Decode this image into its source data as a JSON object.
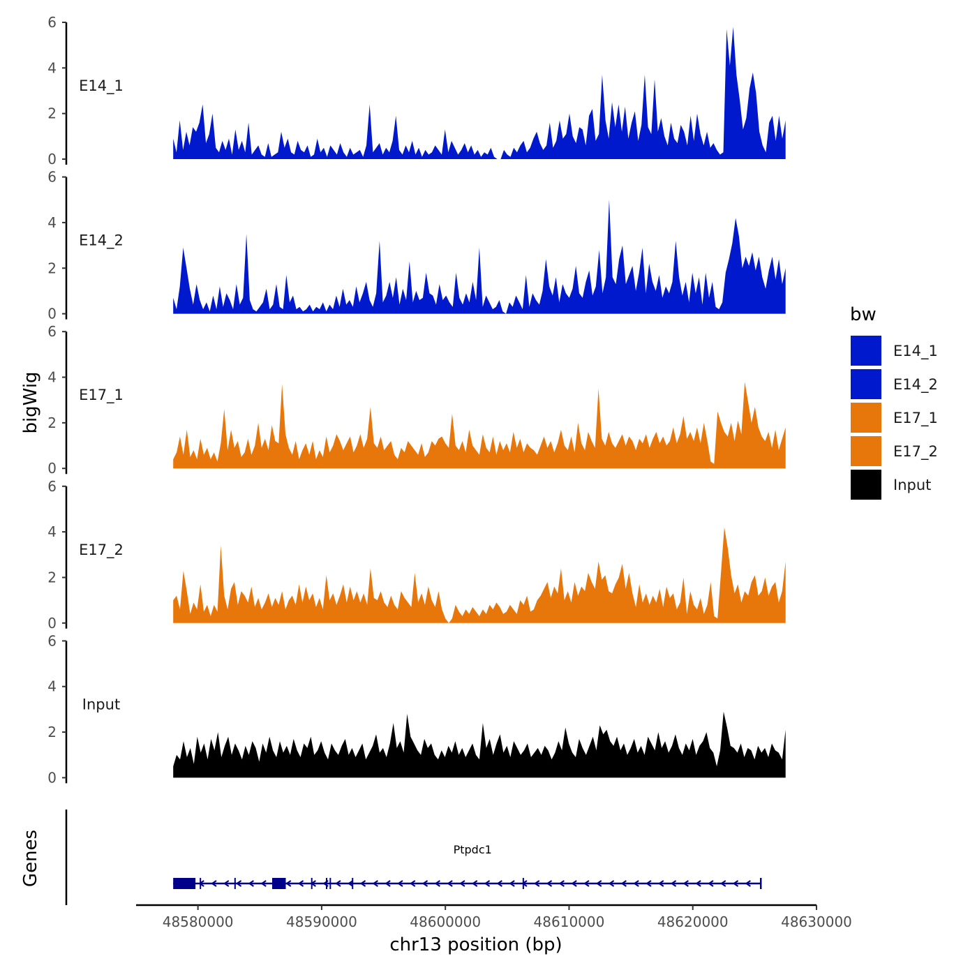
{
  "chart_data": {
    "type": "area",
    "title": "",
    "xlabel": "chr13 position (bp)",
    "ylabel": "bigWig",
    "genes_label": "Genes",
    "xlim": [
      48575000,
      48630000
    ],
    "data_x_range": [
      48578000,
      48627500
    ],
    "ylim": [
      0,
      6
    ],
    "yticks": [
      0,
      2,
      4,
      6
    ],
    "xticks": [
      48580000,
      48590000,
      48600000,
      48610000,
      48620000,
      48630000
    ],
    "xtick_labels": [
      "48580000",
      "48590000",
      "48600000",
      "48610000",
      "48620000",
      "48630000"
    ],
    "grid": false,
    "legend": {
      "title": "bw",
      "position": "right",
      "entries": [
        {
          "label": "E14_1",
          "color": "#0019CC"
        },
        {
          "label": "E14_2",
          "color": "#0019CC"
        },
        {
          "label": "E17_1",
          "color": "#E8770B"
        },
        {
          "label": "E17_2",
          "color": "#E8770B"
        },
        {
          "label": "Input",
          "color": "#000000"
        }
      ]
    },
    "series": [
      {
        "name": "E14_1",
        "color": "#0019CC",
        "values": [
          0.9,
          0.3,
          1.7,
          0.4,
          1.2,
          0.6,
          1.4,
          1.2,
          1.6,
          2.4,
          0.7,
          1.1,
          2.0,
          0.5,
          0.3,
          0.8,
          0.4,
          0.9,
          0.2,
          1.3,
          0.4,
          0.8,
          0.3,
          1.6,
          0.2,
          0.4,
          0.6,
          0.2,
          0.1,
          0.7,
          0.1,
          0.2,
          0.3,
          1.2,
          0.5,
          0.9,
          0.3,
          0.2,
          0.8,
          0.4,
          0.3,
          0.6,
          0.1,
          0.2,
          0.9,
          0.3,
          0.5,
          0.1,
          0.6,
          0.4,
          0.2,
          0.7,
          0.3,
          0.1,
          0.5,
          0.2,
          0.3,
          0.4,
          0.1,
          0.6,
          2.4,
          0.3,
          0.5,
          0.7,
          0.2,
          0.5,
          0.3,
          0.8,
          1.9,
          0.4,
          0.2,
          0.6,
          0.3,
          0.8,
          0.2,
          0.5,
          0.1,
          0.4,
          0.2,
          0.3,
          0.6,
          0.4,
          0.2,
          1.3,
          0.3,
          0.8,
          0.5,
          0.2,
          0.4,
          0.7,
          0.3,
          0.6,
          0.2,
          0.4,
          0.1,
          0.3,
          0.2,
          0.5,
          0.1,
          0.0,
          0.0,
          0.4,
          0.2,
          0.1,
          0.5,
          0.3,
          0.6,
          0.8,
          0.3,
          0.5,
          0.9,
          1.2,
          0.7,
          0.4,
          0.6,
          1.6,
          0.5,
          0.8,
          1.7,
          0.9,
          1.1,
          2.0,
          1.0,
          0.7,
          1.4,
          1.3,
          0.6,
          1.9,
          2.2,
          0.8,
          1.1,
          3.7,
          1.7,
          0.9,
          2.5,
          1.4,
          2.4,
          1.2,
          2.3,
          0.9,
          1.6,
          2.1,
          0.8,
          1.5,
          3.7,
          1.4,
          1.1,
          3.5,
          1.2,
          1.8,
          1.0,
          0.6,
          1.6,
          0.9,
          0.7,
          1.5,
          1.2,
          0.6,
          1.9,
          0.8,
          2.0,
          1.1,
          0.6,
          1.2,
          0.5,
          0.7,
          0.4,
          0.2,
          0.3,
          5.7,
          4.1,
          5.8,
          3.7,
          2.6,
          1.3,
          1.8,
          3.1,
          3.8,
          2.9,
          1.2,
          0.6,
          0.3,
          1.6,
          1.9,
          0.8,
          1.9,
          0.9,
          1.7
        ]
      },
      {
        "name": "E14_2",
        "color": "#0019CC",
        "values": [
          0.7,
          0.2,
          1.2,
          2.9,
          2.0,
          1.1,
          0.4,
          1.3,
          0.6,
          0.2,
          0.5,
          0.1,
          0.8,
          0.2,
          1.2,
          0.3,
          0.9,
          0.6,
          0.2,
          1.3,
          0.4,
          0.7,
          3.5,
          0.6,
          0.2,
          0.1,
          0.3,
          0.5,
          1.1,
          0.2,
          0.4,
          1.3,
          0.3,
          0.2,
          1.7,
          0.5,
          0.8,
          0.2,
          0.3,
          0.1,
          0.2,
          0.4,
          0.1,
          0.3,
          0.2,
          0.5,
          0.1,
          0.4,
          0.2,
          0.8,
          0.3,
          1.1,
          0.4,
          0.6,
          0.3,
          1.2,
          0.5,
          0.9,
          1.4,
          0.6,
          0.3,
          0.9,
          3.2,
          0.5,
          0.8,
          1.4,
          0.7,
          1.6,
          0.4,
          1.1,
          0.6,
          2.3,
          0.5,
          1.0,
          0.6,
          0.7,
          1.8,
          0.9,
          0.8,
          0.4,
          1.3,
          0.6,
          0.8,
          0.5,
          0.3,
          1.8,
          0.7,
          0.4,
          0.9,
          0.5,
          1.4,
          0.6,
          2.9,
          0.3,
          0.8,
          0.5,
          0.2,
          0.3,
          0.6,
          0.1,
          0.0,
          0.5,
          0.3,
          0.8,
          0.5,
          0.2,
          1.7,
          0.3,
          0.9,
          0.6,
          0.4,
          1.0,
          2.4,
          1.2,
          0.8,
          1.6,
          0.5,
          1.3,
          0.9,
          0.7,
          1.1,
          2.1,
          0.9,
          0.7,
          1.4,
          1.9,
          0.8,
          1.2,
          2.8,
          0.9,
          1.6,
          5.0,
          1.6,
          1.3,
          2.4,
          3.0,
          1.3,
          1.7,
          2.1,
          1.0,
          1.8,
          2.9,
          0.9,
          2.2,
          1.4,
          1.0,
          1.7,
          0.7,
          1.2,
          0.9,
          1.4,
          3.2,
          1.6,
          0.8,
          1.4,
          0.5,
          1.8,
          0.9,
          1.6,
          0.4,
          1.8,
          0.7,
          1.4,
          0.3,
          0.2,
          0.5,
          1.8,
          2.4,
          3.1,
          4.2,
          3.4,
          2.0,
          2.5,
          2.1,
          2.7,
          1.9,
          2.5,
          1.6,
          1.1,
          1.9,
          2.5,
          1.5,
          2.4,
          1.3,
          2.0
        ]
      },
      {
        "name": "E17_1",
        "color": "#E8770B",
        "values": [
          0.4,
          0.7,
          1.4,
          0.6,
          1.7,
          0.5,
          0.8,
          0.4,
          1.3,
          0.6,
          0.9,
          0.4,
          0.7,
          0.3,
          1.1,
          2.6,
          0.8,
          1.7,
          0.9,
          1.2,
          0.5,
          0.7,
          1.3,
          0.6,
          1.0,
          2.0,
          0.9,
          1.3,
          0.8,
          1.9,
          1.2,
          1.1,
          3.7,
          1.5,
          0.9,
          0.6,
          1.2,
          0.4,
          0.8,
          1.1,
          0.6,
          1.2,
          0.4,
          0.8,
          0.5,
          1.4,
          0.7,
          1.0,
          1.5,
          1.2,
          0.8,
          1.1,
          1.4,
          0.7,
          1.0,
          1.5,
          0.9,
          1.3,
          2.7,
          1.1,
          0.9,
          1.4,
          0.8,
          1.0,
          1.2,
          0.6,
          0.4,
          0.9,
          0.7,
          1.2,
          1.0,
          0.8,
          0.6,
          1.1,
          0.5,
          0.7,
          1.2,
          1.0,
          1.3,
          1.4,
          1.1,
          0.9,
          2.4,
          1.0,
          0.8,
          1.2,
          0.7,
          1.7,
          1.0,
          0.8,
          0.6,
          1.5,
          0.9,
          0.7,
          1.4,
          0.6,
          1.2,
          0.8,
          1.1,
          0.7,
          1.6,
          0.9,
          1.3,
          0.7,
          1.1,
          0.9,
          0.8,
          0.6,
          1.0,
          1.4,
          0.9,
          1.2,
          0.7,
          1.1,
          1.7,
          1.0,
          0.8,
          1.4,
          0.7,
          2.0,
          1.1,
          0.8,
          1.6,
          1.2,
          0.9,
          3.5,
          1.3,
          1.0,
          1.6,
          1.1,
          0.9,
          1.2,
          1.5,
          1.0,
          1.4,
          1.2,
          0.8,
          1.3,
          1.1,
          1.5,
          0.9,
          1.3,
          1.6,
          1.1,
          1.4,
          1.0,
          1.2,
          1.8,
          1.1,
          1.5,
          2.3,
          1.3,
          1.6,
          1.2,
          1.8,
          1.1,
          2.0,
          1.2,
          0.3,
          0.2,
          2.5,
          2.0,
          1.6,
          1.4,
          2.0,
          1.2,
          2.1,
          1.5,
          3.8,
          2.9,
          2.0,
          2.7,
          1.8,
          1.4,
          1.2,
          1.6,
          0.9,
          1.7,
          0.8,
          1.3,
          1.8
        ]
      },
      {
        "name": "E17_2",
        "color": "#E8770B",
        "values": [
          1.0,
          1.2,
          0.6,
          2.3,
          1.4,
          0.4,
          0.9,
          0.6,
          1.7,
          0.5,
          0.8,
          0.3,
          0.8,
          0.5,
          3.4,
          1.2,
          0.6,
          1.5,
          1.8,
          0.8,
          1.4,
          1.2,
          0.9,
          1.6,
          0.7,
          1.1,
          0.6,
          0.9,
          1.3,
          0.7,
          1.1,
          0.8,
          1.4,
          0.6,
          1.0,
          1.2,
          0.8,
          1.7,
          0.9,
          1.6,
          1.0,
          1.3,
          0.7,
          1.1,
          0.6,
          2.1,
          1.0,
          1.3,
          0.8,
          1.2,
          1.7,
          0.9,
          1.6,
          1.0,
          1.4,
          0.9,
          1.3,
          0.8,
          2.4,
          1.1,
          1.0,
          1.4,
          0.9,
          0.7,
          1.2,
          0.8,
          0.6,
          1.4,
          1.1,
          0.9,
          0.7,
          2.2,
          0.9,
          1.3,
          0.8,
          1.6,
          1.0,
          0.7,
          1.4,
          0.6,
          0.2,
          0.0,
          0.2,
          0.8,
          0.5,
          0.3,
          0.6,
          0.4,
          0.7,
          0.5,
          0.3,
          0.6,
          0.4,
          0.8,
          0.6,
          0.9,
          0.7,
          0.4,
          0.5,
          0.8,
          0.6,
          0.4,
          1.0,
          0.8,
          1.2,
          0.5,
          0.6,
          1.0,
          1.2,
          1.5,
          1.8,
          1.1,
          1.6,
          1.3,
          2.4,
          1.0,
          1.4,
          0.9,
          1.8,
          1.2,
          1.6,
          1.4,
          2.2,
          1.8,
          1.5,
          2.7,
          1.9,
          2.1,
          1.4,
          1.3,
          1.7,
          2.0,
          2.6,
          1.5,
          2.2,
          1.3,
          0.7,
          1.7,
          0.9,
          1.3,
          0.8,
          1.2,
          0.9,
          1.5,
          0.7,
          1.6,
          1.1,
          1.3,
          0.6,
          0.9,
          2.0,
          0.4,
          1.4,
          0.8,
          0.6,
          1.1,
          0.4,
          0.8,
          1.8,
          0.3,
          0.2,
          2.2,
          4.2,
          3.3,
          2.1,
          1.3,
          1.7,
          0.9,
          1.4,
          1.2,
          1.8,
          2.1,
          1.2,
          1.4,
          2.0,
          1.2,
          1.6,
          1.8,
          0.9,
          1.4,
          2.7
        ]
      },
      {
        "name": "Input",
        "color": "#000000",
        "values": [
          0.5,
          1.0,
          0.8,
          1.6,
          0.9,
          1.3,
          0.6,
          1.8,
          1.1,
          1.5,
          0.8,
          1.7,
          1.2,
          2.0,
          0.9,
          1.4,
          1.8,
          1.0,
          1.5,
          1.2,
          0.8,
          1.4,
          1.0,
          1.6,
          1.3,
          0.7,
          1.5,
          1.1,
          1.8,
          1.2,
          0.9,
          1.6,
          1.1,
          1.4,
          1.0,
          1.7,
          1.2,
          0.9,
          1.5,
          1.3,
          1.8,
          1.0,
          1.2,
          1.6,
          1.1,
          0.8,
          1.5,
          1.2,
          1.0,
          1.4,
          1.7,
          1.0,
          1.3,
          0.9,
          1.2,
          1.5,
          0.8,
          1.1,
          1.4,
          1.9,
          1.1,
          1.3,
          0.9,
          1.5,
          2.4,
          1.3,
          1.6,
          1.1,
          2.8,
          1.8,
          1.5,
          1.2,
          1.0,
          1.7,
          1.3,
          1.5,
          1.0,
          0.8,
          1.2,
          0.9,
          1.4,
          1.1,
          1.6,
          1.0,
          1.3,
          0.9,
          1.2,
          1.5,
          1.0,
          0.8,
          2.4,
          1.3,
          1.7,
          1.0,
          1.5,
          1.9,
          1.1,
          1.4,
          0.9,
          1.6,
          1.3,
          1.0,
          1.2,
          1.5,
          0.9,
          1.1,
          1.3,
          1.0,
          1.4,
          1.2,
          0.8,
          1.1,
          1.6,
          1.2,
          2.2,
          1.5,
          1.1,
          0.9,
          1.7,
          1.3,
          1.0,
          1.4,
          1.8,
          1.2,
          2.3,
          1.9,
          2.1,
          1.6,
          1.4,
          1.8,
          1.2,
          1.5,
          1.0,
          1.3,
          1.7,
          1.1,
          1.4,
          1.0,
          1.8,
          1.5,
          1.2,
          2.0,
          1.3,
          1.6,
          1.1,
          1.4,
          1.9,
          1.3,
          1.0,
          1.5,
          1.2,
          1.7,
          1.0,
          1.4,
          1.6,
          2.0,
          1.3,
          1.1,
          0.5,
          1.2,
          2.9,
          2.2,
          1.4,
          1.3,
          1.1,
          1.5,
          0.9,
          1.3,
          1.2,
          0.8,
          1.4,
          1.1,
          1.3,
          0.9,
          1.5,
          1.2,
          1.1,
          0.8,
          2.1
        ]
      }
    ],
    "genes": [
      {
        "name": "Ptpdc1",
        "strand": "-",
        "start": 48578000,
        "end": 48625500,
        "exons": [
          [
            48578000,
            48579800
          ],
          [
            48586000,
            48587100
          ]
        ],
        "intron_marks": [
          48580200,
          48583000,
          48589200,
          48590400,
          48590700,
          48592500,
          48606300
        ]
      }
    ]
  }
}
